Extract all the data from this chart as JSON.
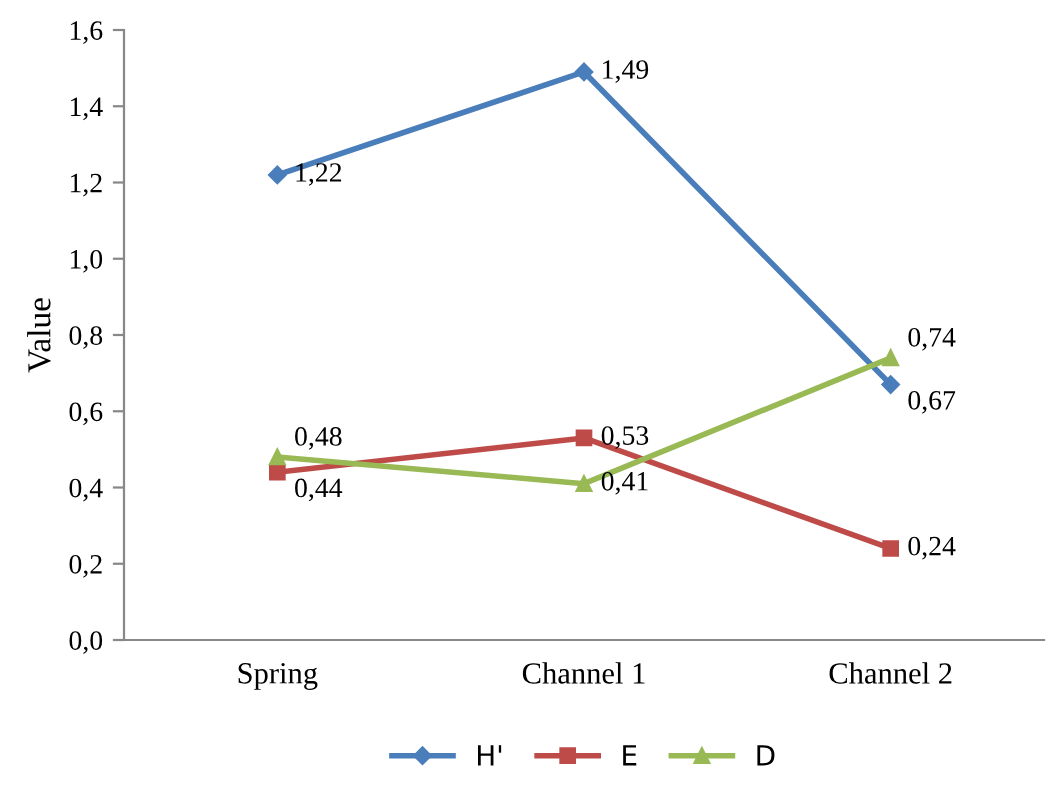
{
  "chart_data": {
    "type": "line",
    "ylabel": "Value",
    "categories": [
      "Spring",
      "Channel 1",
      "Channel 2"
    ],
    "series": [
      {
        "name": "H'",
        "color": "#4a7ebb",
        "marker": "diamond",
        "values": [
          1.22,
          1.49,
          0.67
        ],
        "value_labels": [
          "1,22",
          "1,49",
          "0,67"
        ]
      },
      {
        "name": "E",
        "color": "#be4b48",
        "marker": "square",
        "values": [
          0.44,
          0.53,
          0.24
        ],
        "value_labels": [
          "0,44",
          "0,53",
          "0,24"
        ]
      },
      {
        "name": "D",
        "color": "#98b954",
        "marker": "triangle",
        "values": [
          0.48,
          0.41,
          0.74
        ],
        "value_labels": [
          "0,48",
          "0,41",
          "0,74"
        ]
      }
    ],
    "ylim": [
      0,
      1.6
    ],
    "yticks": [
      {
        "value": 0,
        "label": "0,0"
      },
      {
        "value": 0.2,
        "label": "0,2"
      },
      {
        "value": 0.4,
        "label": "0,4"
      },
      {
        "value": 0.6,
        "label": "0,6"
      },
      {
        "value": 0.8,
        "label": "0,8"
      },
      {
        "value": 1.0,
        "label": "1,0"
      },
      {
        "value": 1.2,
        "label": "1,2"
      },
      {
        "value": 1.4,
        "label": "1,4"
      },
      {
        "value": 1.6,
        "label": "1,6"
      }
    ],
    "grid": false,
    "legend": "bottom",
    "line_style": "solid"
  }
}
